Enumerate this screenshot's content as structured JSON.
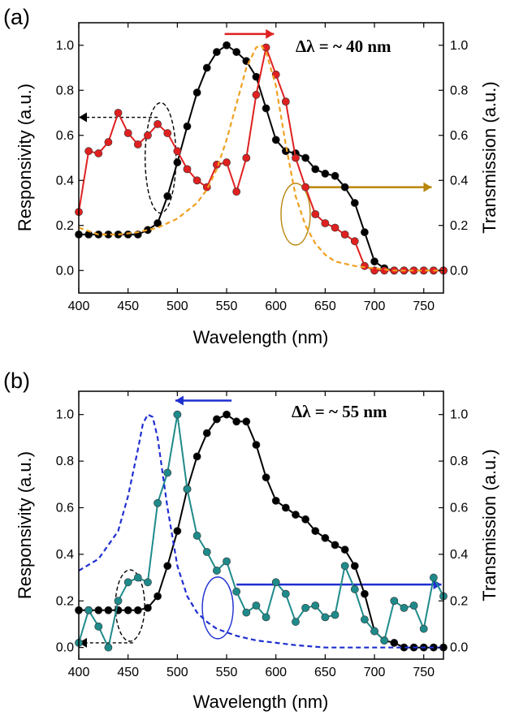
{
  "chart_data": [
    {
      "type": "line",
      "panel_label": "(a)",
      "annotation": "Δλ = ~ 40 nm",
      "xlabel": "Wavelength (nm)",
      "ylabel": "Responsivity (a.u.)",
      "y2label": "Transmission (a.u.)",
      "xlim": [
        400,
        770
      ],
      "ylim": [
        -0.1,
        1.1
      ],
      "xticks": [
        "400",
        "450",
        "500",
        "550",
        "600",
        "650",
        "700",
        "750"
      ],
      "yticks": [
        "0.0",
        "0.2",
        "0.4",
        "0.6",
        "0.8",
        "1.0"
      ],
      "y2ticks": [
        "0.0",
        "0.2",
        "0.4",
        "0.6",
        "0.8",
        "1.0"
      ],
      "colors": {
        "responsivity": "#000000",
        "filtered": "#e02020",
        "transmission": "#f0a020",
        "guide": "#b8860b"
      },
      "series": [
        {
          "role": "responsivity",
          "style": "line+markers",
          "x": [
            400,
            410,
            420,
            430,
            440,
            450,
            460,
            470,
            480,
            490,
            500,
            510,
            520,
            530,
            540,
            550,
            560,
            570,
            580,
            590,
            600,
            610,
            620,
            630,
            640,
            650,
            660,
            670,
            680,
            690,
            700,
            710,
            720,
            730,
            740,
            750,
            760,
            770
          ],
          "y": [
            0.16,
            0.16,
            0.16,
            0.16,
            0.16,
            0.16,
            0.16,
            0.18,
            0.21,
            0.33,
            0.48,
            0.64,
            0.79,
            0.9,
            0.97,
            1.0,
            0.97,
            0.93,
            0.86,
            0.72,
            0.58,
            0.53,
            0.52,
            0.5,
            0.45,
            0.43,
            0.42,
            0.37,
            0.3,
            0.17,
            0.04,
            0.01,
            0.0,
            0.0,
            0.0,
            0.0,
            0.0,
            0.0
          ]
        },
        {
          "role": "filtered",
          "style": "line+markers",
          "x": [
            400,
            410,
            420,
            430,
            440,
            450,
            460,
            470,
            480,
            490,
            500,
            510,
            520,
            530,
            540,
            550,
            560,
            570,
            580,
            590,
            600,
            610,
            620,
            630,
            640,
            650,
            660,
            670,
            680,
            690,
            700,
            710,
            720,
            730,
            740,
            750,
            760,
            770
          ],
          "y": [
            0.26,
            0.53,
            0.52,
            0.57,
            0.7,
            0.61,
            0.56,
            0.6,
            0.65,
            0.61,
            0.53,
            0.45,
            0.4,
            0.37,
            0.47,
            0.48,
            0.35,
            0.5,
            0.78,
            0.99,
            0.87,
            0.75,
            0.5,
            0.37,
            0.25,
            0.21,
            0.19,
            0.16,
            0.13,
            0.02,
            0.0,
            0.0,
            0.0,
            0.0,
            0.0,
            0.0,
            0.0,
            0.0
          ]
        },
        {
          "role": "transmission",
          "style": "dashed",
          "x": [
            400,
            420,
            440,
            460,
            480,
            500,
            520,
            530,
            540,
            550,
            560,
            570,
            580,
            585,
            590,
            600,
            610,
            620,
            630,
            640,
            650,
            660,
            680,
            700,
            720,
            740,
            770
          ],
          "y": [
            0.19,
            0.16,
            0.16,
            0.17,
            0.19,
            0.23,
            0.3,
            0.36,
            0.45,
            0.58,
            0.74,
            0.9,
            0.99,
            1.0,
            0.97,
            0.82,
            0.56,
            0.33,
            0.2,
            0.12,
            0.07,
            0.04,
            0.02,
            0.01,
            0.0,
            0.0,
            0.0
          ]
        }
      ]
    },
    {
      "type": "line",
      "panel_label": "(b)",
      "annotation": "Δλ = ~ 55 nm",
      "xlabel": "Wavelength (nm)",
      "ylabel": "Responsivity (a.u.)",
      "y2label": "Transmission (a.u.)",
      "xlim": [
        400,
        770
      ],
      "ylim": [
        -0.05,
        1.1
      ],
      "xticks": [
        "400",
        "450",
        "500",
        "550",
        "600",
        "650",
        "700",
        "750"
      ],
      "yticks": [
        "0.0",
        "0.2",
        "0.4",
        "0.6",
        "0.8",
        "1.0"
      ],
      "y2ticks": [
        "0.0",
        "0.2",
        "0.4",
        "0.6",
        "0.8",
        "1.0"
      ],
      "colors": {
        "responsivity": "#000000",
        "filtered": "#1f8a8a",
        "transmission": "#1f2fd0",
        "guide": "#1f2fd0"
      },
      "series": [
        {
          "role": "responsivity",
          "style": "line+markers",
          "x": [
            400,
            410,
            420,
            430,
            440,
            450,
            460,
            470,
            480,
            490,
            500,
            510,
            520,
            530,
            540,
            550,
            560,
            570,
            580,
            590,
            600,
            610,
            620,
            630,
            640,
            650,
            660,
            670,
            680,
            690,
            700,
            710,
            720,
            730,
            740,
            750,
            760,
            770
          ],
          "y": [
            0.16,
            0.16,
            0.16,
            0.16,
            0.16,
            0.16,
            0.16,
            0.17,
            0.22,
            0.35,
            0.5,
            0.68,
            0.82,
            0.92,
            0.98,
            1.0,
            0.97,
            0.97,
            0.87,
            0.73,
            0.63,
            0.6,
            0.57,
            0.55,
            0.5,
            0.47,
            0.44,
            0.42,
            0.35,
            0.23,
            0.07,
            0.03,
            0.02,
            0.0,
            0.0,
            0.0,
            0.0,
            0.0
          ]
        },
        {
          "role": "filtered",
          "style": "line+markers",
          "x": [
            400,
            410,
            420,
            430,
            440,
            450,
            460,
            470,
            480,
            490,
            500,
            510,
            520,
            530,
            540,
            550,
            560,
            570,
            580,
            590,
            600,
            610,
            620,
            630,
            640,
            650,
            660,
            670,
            680,
            690,
            700,
            710,
            720,
            730,
            740,
            750,
            760,
            770
          ],
          "y": [
            0.02,
            0.16,
            0.09,
            0.0,
            0.2,
            0.28,
            0.3,
            0.28,
            0.62,
            0.75,
            1.0,
            0.68,
            0.48,
            0.41,
            0.33,
            0.37,
            0.24,
            0.15,
            0.18,
            0.13,
            0.28,
            0.23,
            0.11,
            0.17,
            0.18,
            0.13,
            0.14,
            0.35,
            0.25,
            0.12,
            0.07,
            0.03,
            0.2,
            0.17,
            0.18,
            0.08,
            0.3,
            0.22
          ]
        },
        {
          "role": "transmission",
          "style": "dashed",
          "x": [
            400,
            420,
            440,
            450,
            460,
            465,
            470,
            475,
            480,
            490,
            500,
            510,
            520,
            530,
            540,
            560,
            580,
            600,
            620,
            650,
            700,
            770
          ],
          "y": [
            0.33,
            0.38,
            0.5,
            0.65,
            0.85,
            0.96,
            1.0,
            0.99,
            0.9,
            0.6,
            0.35,
            0.22,
            0.15,
            0.11,
            0.08,
            0.05,
            0.03,
            0.02,
            0.01,
            0.0,
            0.0,
            0.0
          ]
        }
      ]
    }
  ]
}
